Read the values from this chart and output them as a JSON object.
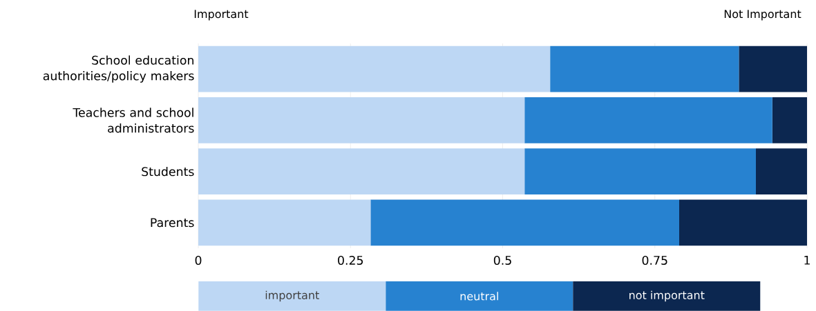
{
  "chart_data": {
    "type": "bar",
    "orientation": "horizontal",
    "stacked": true,
    "annotations": [
      "Important",
      "Not Important"
    ],
    "categories": [
      "School education authorities/policy makers",
      "Teachers and school administrators",
      "Students",
      "Parents"
    ],
    "series": [
      {
        "name": "important",
        "color": "#bdd7f4",
        "values": [
          0.578,
          0.536,
          0.536,
          0.283
        ]
      },
      {
        "name": "neutral",
        "color": "#2782d0",
        "values": [
          0.31,
          0.407,
          0.38,
          0.507
        ]
      },
      {
        "name": "not important",
        "color": "#0c2750",
        "values": [
          0.112,
          0.057,
          0.084,
          0.21
        ]
      }
    ],
    "xlim": [
      0,
      1
    ],
    "xticks": [
      0,
      0.25,
      0.5,
      0.75,
      1
    ],
    "grid": "x",
    "legend": "bottom"
  }
}
